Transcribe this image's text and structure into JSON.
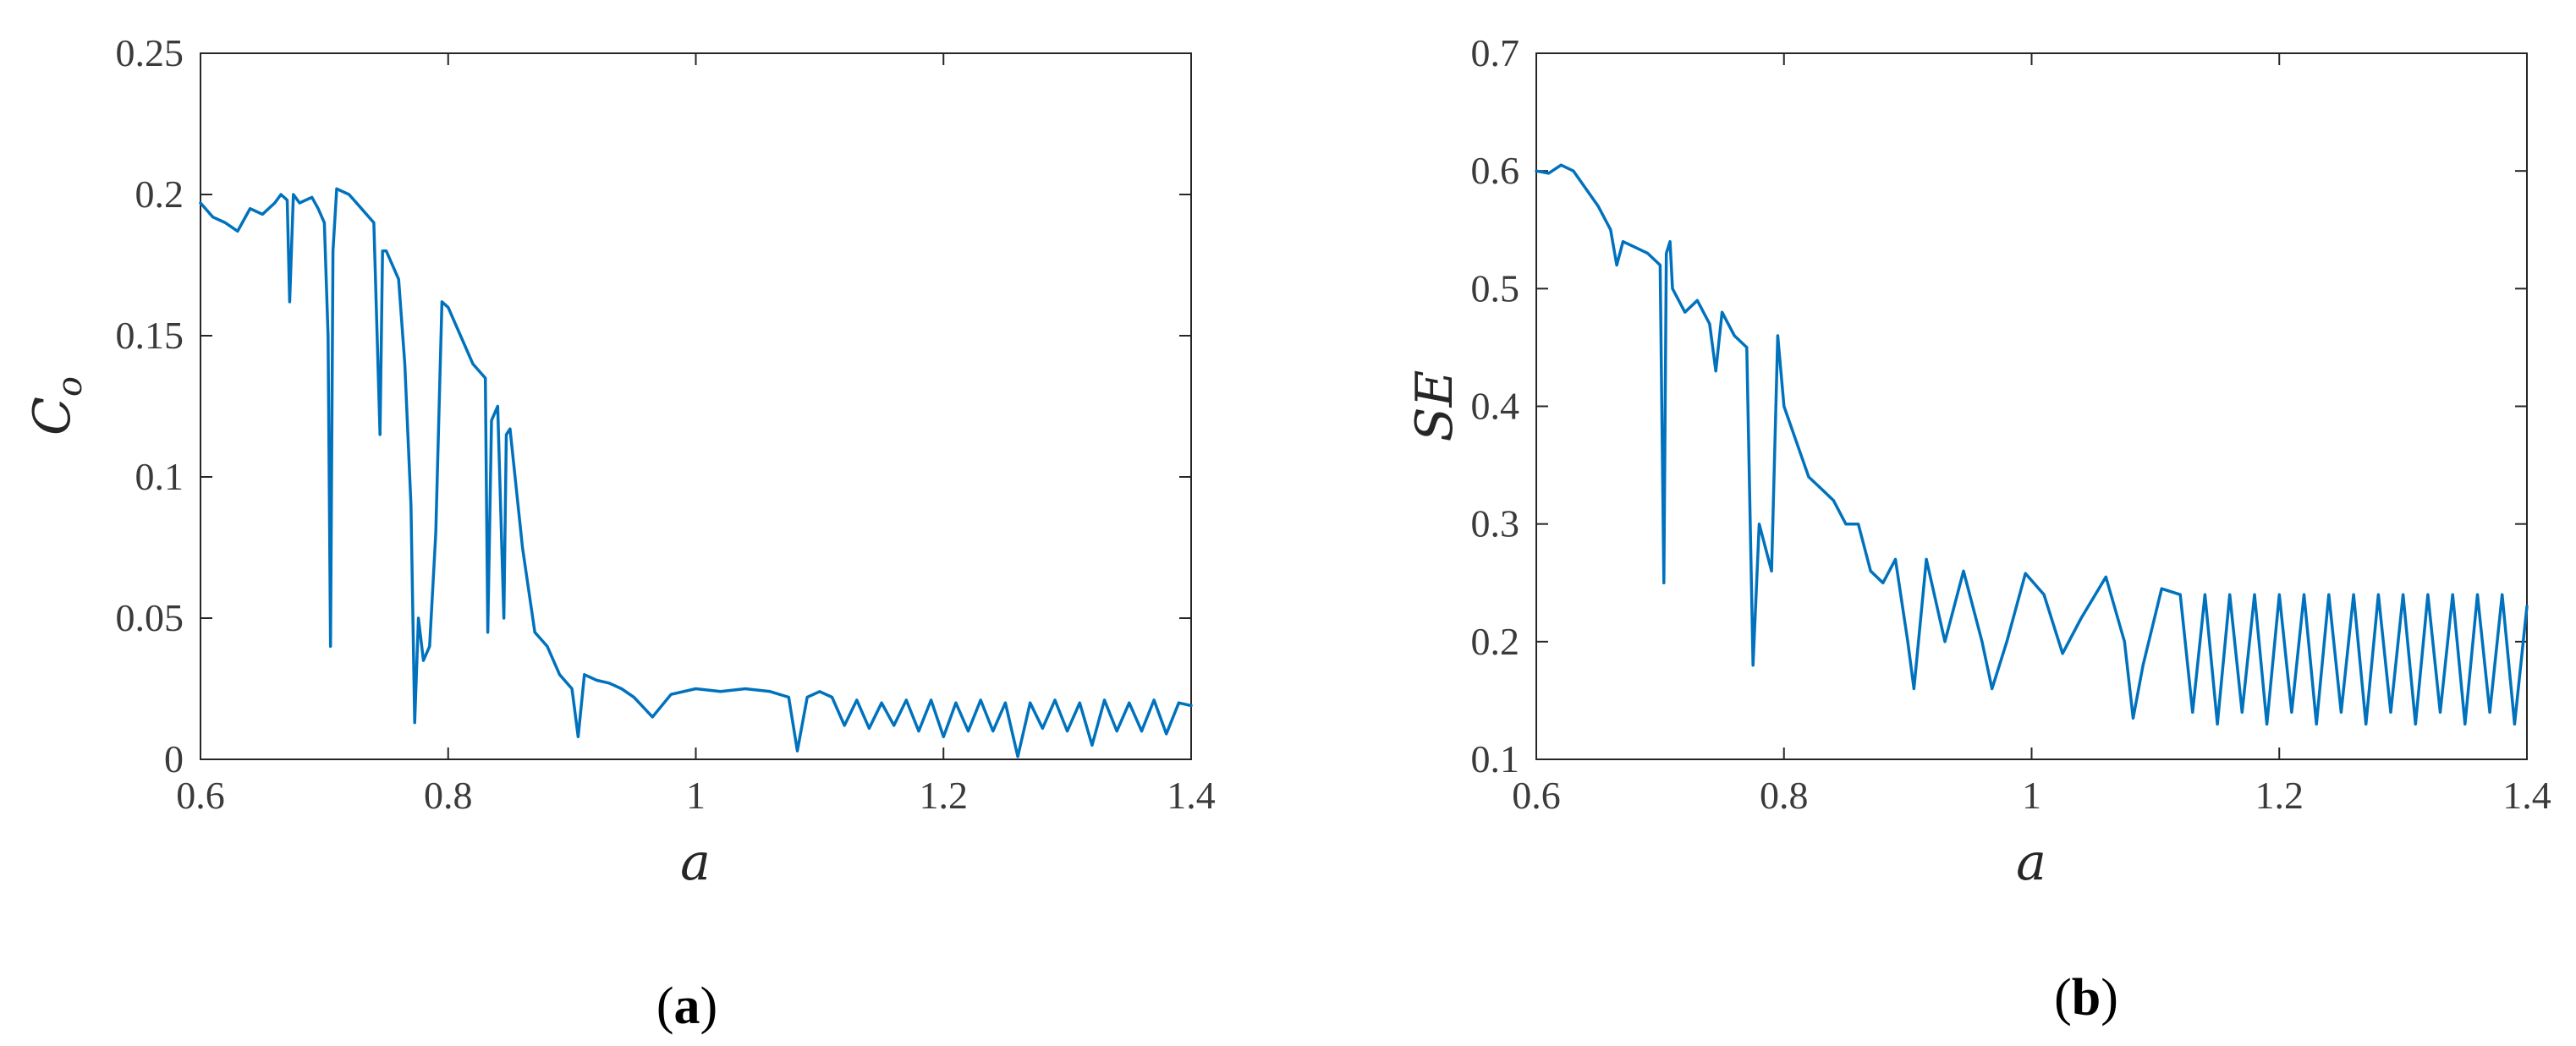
{
  "colors": {
    "series": "#0072BD",
    "axes": "#262626"
  },
  "chart_data": [
    {
      "type": "line",
      "panel_label": "a",
      "xlabel": "a",
      "ylabel_main": "C",
      "ylabel_sub": "o",
      "xlim": [
        0.6,
        1.4
      ],
      "ylim": [
        0,
        0.25
      ],
      "xticks": [
        "0.6",
        "0.8",
        "1",
        "1.2",
        "1.4"
      ],
      "yticks": [
        "0",
        "0.05",
        "0.1",
        "0.15",
        "0.2",
        "0.25"
      ],
      "grid": false,
      "series": [
        {
          "x": [
            0.6,
            0.61,
            0.62,
            0.63,
            0.64,
            0.65,
            0.66,
            0.665,
            0.67,
            0.672,
            0.675,
            0.68,
            0.69,
            0.695,
            0.7,
            0.703,
            0.705,
            0.707,
            0.71,
            0.72,
            0.73,
            0.74,
            0.745,
            0.747,
            0.75,
            0.76,
            0.765,
            0.77,
            0.773,
            0.776,
            0.78,
            0.785,
            0.79,
            0.795,
            0.8,
            0.81,
            0.82,
            0.83,
            0.832,
            0.835,
            0.84,
            0.845,
            0.847,
            0.85,
            0.86,
            0.865,
            0.87,
            0.88,
            0.89,
            0.9,
            0.905,
            0.91,
            0.92,
            0.93,
            0.94,
            0.95,
            0.965,
            0.98,
            1.0,
            1.02,
            1.04,
            1.06,
            1.075,
            1.082,
            1.09,
            1.1,
            1.11,
            1.12,
            1.13,
            1.14,
            1.15,
            1.16,
            1.17,
            1.18,
            1.19,
            1.2,
            1.21,
            1.22,
            1.23,
            1.24,
            1.25,
            1.26,
            1.27,
            1.28,
            1.29,
            1.3,
            1.31,
            1.32,
            1.33,
            1.34,
            1.35,
            1.36,
            1.37,
            1.38,
            1.39,
            1.4
          ],
          "y": [
            0.197,
            0.192,
            0.19,
            0.187,
            0.195,
            0.193,
            0.197,
            0.2,
            0.198,
            0.162,
            0.2,
            0.197,
            0.199,
            0.195,
            0.19,
            0.15,
            0.04,
            0.18,
            0.202,
            0.2,
            0.195,
            0.19,
            0.115,
            0.18,
            0.18,
            0.17,
            0.14,
            0.09,
            0.013,
            0.05,
            0.035,
            0.04,
            0.08,
            0.162,
            0.16,
            0.15,
            0.14,
            0.135,
            0.045,
            0.12,
            0.125,
            0.05,
            0.115,
            0.117,
            0.075,
            0.06,
            0.045,
            0.04,
            0.03,
            0.025,
            0.008,
            0.03,
            0.028,
            0.027,
            0.025,
            0.022,
            0.015,
            0.023,
            0.025,
            0.024,
            0.025,
            0.024,
            0.022,
            0.003,
            0.022,
            0.024,
            0.022,
            0.012,
            0.021,
            0.011,
            0.02,
            0.012,
            0.021,
            0.01,
            0.021,
            0.008,
            0.02,
            0.01,
            0.021,
            0.01,
            0.02,
            0.001,
            0.02,
            0.011,
            0.021,
            0.01,
            0.02,
            0.005,
            0.021,
            0.01,
            0.02,
            0.01,
            0.021,
            0.009,
            0.02,
            0.019
          ]
        }
      ]
    },
    {
      "type": "line",
      "panel_label": "b",
      "xlabel": "a",
      "ylabel_main": "SE",
      "ylabel_sub": "",
      "xlim": [
        0.6,
        1.4
      ],
      "ylim": [
        0.1,
        0.7
      ],
      "xticks": [
        "0.6",
        "0.8",
        "1",
        "1.2",
        "1.4"
      ],
      "yticks": [
        "0.1",
        "0.2",
        "0.3",
        "0.4",
        "0.5",
        "0.6",
        "0.7"
      ],
      "grid": false,
      "series": [
        {
          "x": [
            0.6,
            0.61,
            0.62,
            0.63,
            0.64,
            0.65,
            0.66,
            0.665,
            0.67,
            0.68,
            0.69,
            0.7,
            0.703,
            0.705,
            0.708,
            0.71,
            0.72,
            0.73,
            0.74,
            0.745,
            0.75,
            0.76,
            0.77,
            0.775,
            0.78,
            0.785,
            0.79,
            0.795,
            0.8,
            0.81,
            0.82,
            0.83,
            0.84,
            0.85,
            0.86,
            0.87,
            0.88,
            0.89,
            0.9,
            0.905,
            0.915,
            0.93,
            0.945,
            0.96,
            0.968,
            0.98,
            0.995,
            1.01,
            1.025,
            1.04,
            1.06,
            1.075,
            1.082,
            1.09,
            1.105,
            1.12,
            1.13,
            1.14,
            1.15,
            1.16,
            1.17,
            1.18,
            1.19,
            1.2,
            1.21,
            1.22,
            1.23,
            1.24,
            1.25,
            1.26,
            1.27,
            1.28,
            1.29,
            1.3,
            1.31,
            1.32,
            1.33,
            1.34,
            1.35,
            1.36,
            1.37,
            1.38,
            1.39,
            1.4
          ],
          "y": [
            0.6,
            0.598,
            0.605,
            0.6,
            0.585,
            0.57,
            0.55,
            0.52,
            0.54,
            0.535,
            0.53,
            0.52,
            0.25,
            0.53,
            0.54,
            0.5,
            0.48,
            0.49,
            0.47,
            0.43,
            0.48,
            0.46,
            0.45,
            0.18,
            0.3,
            0.28,
            0.26,
            0.46,
            0.4,
            0.37,
            0.34,
            0.33,
            0.32,
            0.3,
            0.3,
            0.26,
            0.25,
            0.27,
            0.2,
            0.16,
            0.27,
            0.2,
            0.26,
            0.2,
            0.16,
            0.2,
            0.258,
            0.24,
            0.19,
            0.22,
            0.255,
            0.2,
            0.135,
            0.18,
            0.245,
            0.24,
            0.14,
            0.24,
            0.13,
            0.24,
            0.14,
            0.24,
            0.13,
            0.24,
            0.14,
            0.24,
            0.13,
            0.24,
            0.14,
            0.24,
            0.13,
            0.24,
            0.14,
            0.24,
            0.13,
            0.24,
            0.14,
            0.24,
            0.13,
            0.24,
            0.14,
            0.24,
            0.13,
            0.23
          ]
        }
      ]
    }
  ]
}
